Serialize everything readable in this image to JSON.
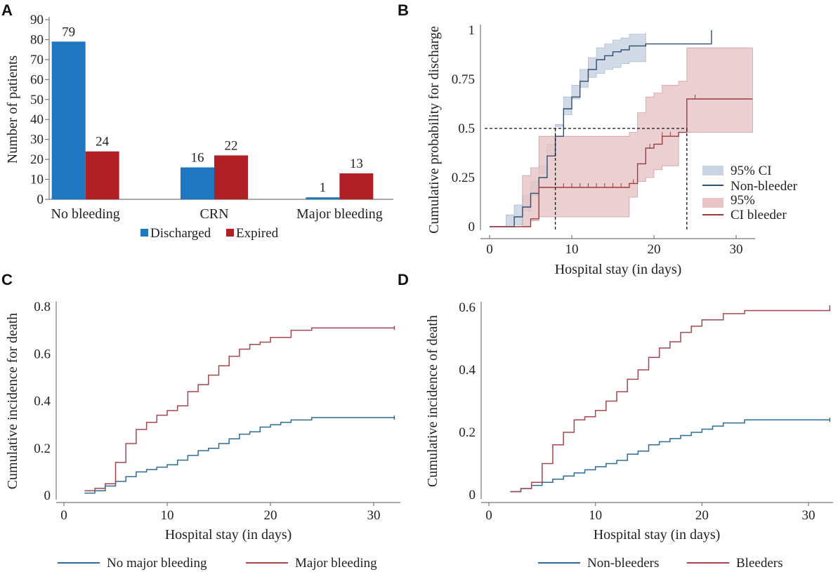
{
  "colors": {
    "discharged": "#1f77c2",
    "expired": "#b01f24",
    "non_bleeder_line": "#2f4f6f",
    "bleeder_line": "#9b3a40",
    "ci_non_bleeder": "#c9d4e2",
    "ci_bleeder": "#e8c4c6",
    "blue_curve": "#2c6c96",
    "red_curve": "#a5474d"
  },
  "chart_data": [
    {
      "panel": "A",
      "type": "bar",
      "categories": [
        "No bleeding",
        "CRN",
        "Major bleeding"
      ],
      "series": [
        {
          "name": "Discharged",
          "values": [
            79,
            16,
            1
          ]
        },
        {
          "name": "Expired",
          "values": [
            24,
            22,
            13
          ]
        }
      ],
      "ylabel": "Number of patients",
      "ylim": [
        0,
        90
      ],
      "yticks": [
        "0",
        "10",
        "20",
        "30",
        "40",
        "50",
        "60",
        "70",
        "80",
        "90"
      ],
      "legend": [
        "Discharged",
        "Expired"
      ]
    },
    {
      "panel": "B",
      "type": "line",
      "xlabel": "Hospital stay (in days)",
      "ylabel": "Cumulative probability for discharge",
      "xlim": [
        -1,
        32
      ],
      "ylim": [
        0,
        1
      ],
      "xticks": [
        "0",
        "10",
        "20",
        "30"
      ],
      "yticks": [
        "0",
        "0.25",
        "0.5",
        "0.75",
        "1"
      ],
      "series": [
        {
          "name": "Non-bleeder",
          "x": [
            0,
            2,
            3,
            4,
            5,
            6,
            7,
            8,
            9,
            10,
            11,
            12,
            13,
            14,
            15,
            16,
            17,
            19,
            27,
            27
          ],
          "y": [
            0,
            0,
            0.05,
            0.1,
            0.17,
            0.25,
            0.36,
            0.46,
            0.6,
            0.66,
            0.74,
            0.8,
            0.85,
            0.87,
            0.89,
            0.9,
            0.92,
            0.93,
            0.93,
            1.0
          ]
        },
        {
          "name": "CI bleeder",
          "x": [
            0,
            4,
            5,
            6,
            17,
            18,
            19,
            20,
            21,
            23,
            24,
            32
          ],
          "y": [
            0,
            0,
            0.04,
            0.2,
            0.22,
            0.32,
            0.4,
            0.42,
            0.46,
            0.48,
            0.65,
            0.65
          ]
        }
      ],
      "median_lines": [
        8,
        24
      ],
      "median_level": 0.5,
      "legend": [
        "95% CI",
        "Non-bleeder",
        "95%",
        "CI bleeder"
      ]
    },
    {
      "panel": "C",
      "type": "line",
      "xlabel": "Hospital stay (in days)",
      "ylabel": "Cumulative incidence for death",
      "xlim": [
        0,
        32
      ],
      "ylim": [
        0,
        0.8
      ],
      "xticks": [
        "0",
        "10",
        "20",
        "30"
      ],
      "yticks": [
        "0",
        "0.2",
        "0.4",
        "0.6",
        "0.8"
      ],
      "series": [
        {
          "name": "No major bleeding",
          "x": [
            2,
            3,
            4,
            5,
            6,
            7,
            8,
            9,
            10,
            11,
            12,
            13,
            14,
            15,
            16,
            17,
            18,
            19,
            20,
            21,
            22,
            24,
            32
          ],
          "y": [
            0.01,
            0.02,
            0.04,
            0.06,
            0.08,
            0.1,
            0.11,
            0.12,
            0.13,
            0.15,
            0.17,
            0.19,
            0.2,
            0.22,
            0.24,
            0.26,
            0.27,
            0.29,
            0.3,
            0.31,
            0.32,
            0.33,
            0.33
          ]
        },
        {
          "name": "Major bleeding",
          "x": [
            2,
            3,
            4,
            5,
            6,
            7,
            8,
            9,
            10,
            11,
            12,
            13,
            14,
            15,
            16,
            17,
            18,
            19,
            20,
            22,
            24,
            32
          ],
          "y": [
            0.02,
            0.03,
            0.05,
            0.14,
            0.22,
            0.28,
            0.31,
            0.34,
            0.36,
            0.38,
            0.44,
            0.47,
            0.51,
            0.55,
            0.59,
            0.62,
            0.64,
            0.65,
            0.67,
            0.7,
            0.71,
            0.71
          ]
        }
      ],
      "legend": [
        "No major bleeding",
        "Major bleeding"
      ]
    },
    {
      "panel": "D",
      "type": "line",
      "xlabel": "Hospital stay (in days)",
      "ylabel": "Cumulative incidence of death",
      "xlim": [
        0,
        32
      ],
      "ylim": [
        0,
        0.6
      ],
      "xticks": [
        "0",
        "10",
        "20",
        "30"
      ],
      "yticks": [
        "0",
        "0.2",
        "0.4",
        "0.6"
      ],
      "series": [
        {
          "name": "Non-bleeders",
          "x": [
            2,
            3,
            4,
            5,
            6,
            7,
            8,
            9,
            10,
            11,
            12,
            13,
            14,
            15,
            16,
            17,
            18,
            19,
            20,
            21,
            22,
            24,
            32
          ],
          "y": [
            0.01,
            0.02,
            0.03,
            0.04,
            0.05,
            0.06,
            0.07,
            0.08,
            0.09,
            0.1,
            0.11,
            0.13,
            0.14,
            0.16,
            0.17,
            0.18,
            0.19,
            0.2,
            0.21,
            0.22,
            0.23,
            0.24,
            0.24
          ]
        },
        {
          "name": "Bleeders",
          "x": [
            2,
            3,
            4,
            5,
            6,
            7,
            8,
            9,
            10,
            11,
            12,
            13,
            14,
            15,
            16,
            17,
            18,
            19,
            20,
            22,
            24,
            32
          ],
          "y": [
            0.01,
            0.02,
            0.04,
            0.1,
            0.16,
            0.2,
            0.24,
            0.25,
            0.27,
            0.3,
            0.33,
            0.37,
            0.4,
            0.44,
            0.47,
            0.49,
            0.52,
            0.54,
            0.56,
            0.58,
            0.59,
            0.6
          ]
        }
      ],
      "legend": [
        "Non-bleeders",
        "Bleeders"
      ]
    }
  ]
}
